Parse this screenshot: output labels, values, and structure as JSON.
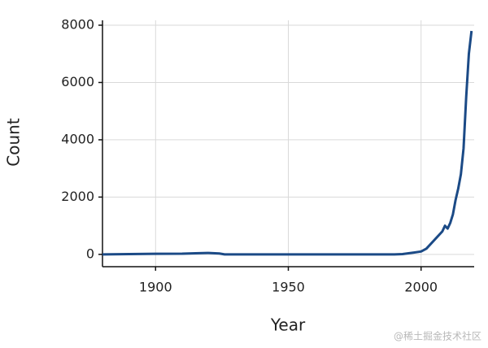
{
  "chart_data": {
    "type": "line",
    "x_label": "Year",
    "y_label": "Count",
    "x": [
      1880,
      1890,
      1900,
      1910,
      1915,
      1920,
      1924,
      1926,
      1950,
      1990,
      1993,
      1997,
      2000,
      2002,
      2008,
      2009,
      2010,
      2011,
      2012,
      2013,
      2014,
      2015,
      2016,
      2017,
      2018,
      2019
    ],
    "series": [
      {
        "name": "Count",
        "color": "#1b4a86",
        "values": [
          0,
          10,
          20,
          25,
          40,
          50,
          30,
          0,
          0,
          0,
          10,
          60,
          100,
          200,
          800,
          1000,
          900,
          1100,
          1400,
          1900,
          2300,
          2800,
          3700,
          5500,
          7000,
          7800
        ]
      }
    ],
    "xlim": [
      1880,
      2020
    ],
    "xticks": [
      1900,
      1950,
      2000
    ],
    "ylim": [
      -430,
      8170
    ],
    "yticks": [
      0,
      2000,
      4000,
      6000,
      8000
    ],
    "grid": true
  },
  "watermark": "@稀土掘金技术社区"
}
